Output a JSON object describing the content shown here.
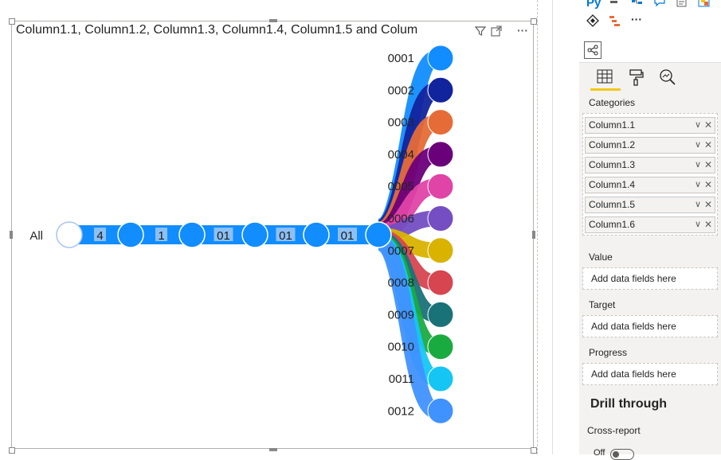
{
  "visual": {
    "title": "Column1.1, Column1.2, Column1.3, Column1.4, Column1.5 and Colum",
    "header_icons": [
      "filter-icon",
      "focus-mode-icon",
      "more-options-icon"
    ],
    "more_label": "···"
  },
  "tree": {
    "root_label": "All",
    "levels": [
      "4",
      "1",
      "01",
      "01",
      "01"
    ],
    "leaves": [
      {
        "label": "0001",
        "color": "#118DFF"
      },
      {
        "label": "0002",
        "color": "#12239E"
      },
      {
        "label": "0003",
        "color": "#E66C37"
      },
      {
        "label": "0004",
        "color": "#6B007B"
      },
      {
        "label": "0005",
        "color": "#E044A7"
      },
      {
        "label": "0006",
        "color": "#744EC2"
      },
      {
        "label": "0007",
        "color": "#D9B300"
      },
      {
        "label": "0008",
        "color": "#D64550"
      },
      {
        "label": "0009",
        "color": "#197278"
      },
      {
        "label": "0010",
        "color": "#1AAB40"
      },
      {
        "label": "0011",
        "color": "#15C6F4"
      },
      {
        "label": "0012",
        "color": "#4092FF"
      }
    ],
    "path_color": "#118DFF"
  },
  "panel": {
    "toolbar_icons": [
      "python-visual-icon",
      "key-influencers-icon",
      "decomposition-tree-icon",
      "qa-icon",
      "smart-narrative-icon",
      "paginated-report-icon",
      "power-apps-icon",
      "power-automate-icon",
      "more-visuals-icon"
    ],
    "python_label": "Py",
    "more_label": "···",
    "tabs": [
      "fields-tab",
      "format-tab",
      "analytics-tab"
    ],
    "categories_label": "Categories",
    "category_fields": [
      "Column1.1",
      "Column1.2",
      "Column1.3",
      "Column1.4",
      "Column1.5",
      "Column1.6"
    ],
    "value_label": "Value",
    "value_placeholder": "Add data fields here",
    "target_label": "Target",
    "target_placeholder": "Add data fields here",
    "progress_label": "Progress",
    "progress_placeholder": "Add data fields here",
    "drill_through_label": "Drill through",
    "cross_report_label": "Cross-report",
    "cross_report_toggle": "Off",
    "accent_color": "#F2C811"
  }
}
